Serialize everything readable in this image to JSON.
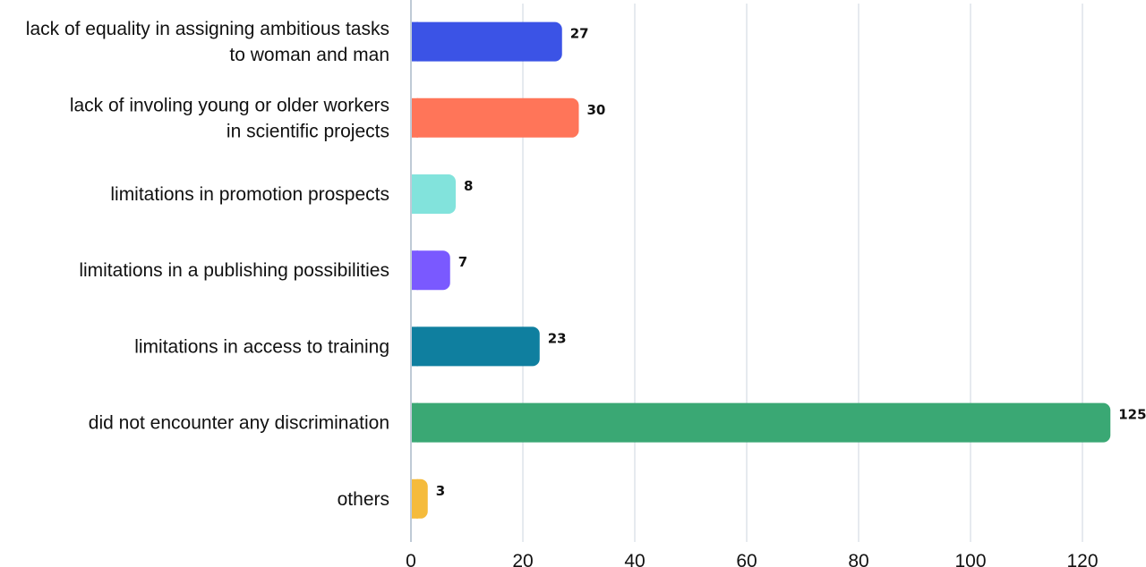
{
  "chart_data": {
    "type": "bar",
    "orientation": "horizontal",
    "title": "",
    "xlabel": "",
    "ylabel": "",
    "xlim": [
      0,
      125
    ],
    "x_ticks": [
      0,
      20,
      40,
      60,
      80,
      100,
      120
    ],
    "grid": true,
    "legend": "none",
    "categories": [
      [
        "lack of equality in assigning ambitious tasks",
        "to woman and man"
      ],
      [
        "lack of involing young or older workers",
        "in scientific projects"
      ],
      [
        "limitations in promotion prospects"
      ],
      [
        "limitations in a publishing possibilities"
      ],
      [
        "limitations in access to training"
      ],
      [
        "did not encounter any discrimination"
      ],
      [
        "others"
      ]
    ],
    "values": [
      27,
      30,
      8,
      7,
      23,
      125,
      3
    ],
    "colors": [
      "#3b53e6",
      "#ff7559",
      "#82e3dc",
      "#7a59ff",
      "#0f7f9f",
      "#3aa874",
      "#f5bb3c"
    ]
  }
}
